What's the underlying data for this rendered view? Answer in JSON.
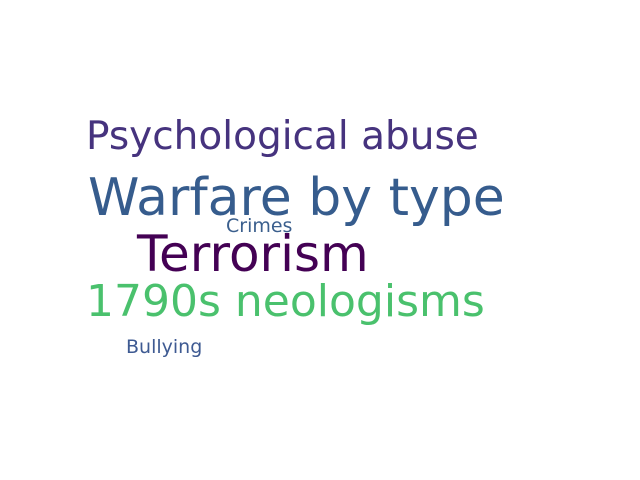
{
  "words": [
    {
      "text": "Psychological abuse",
      "color": "#46337e"
    },
    {
      "text": "Warfare by type",
      "color": "#365c8d"
    },
    {
      "text": "Crimes",
      "color": "#3b5f8d"
    },
    {
      "text": "Terrorism",
      "color": "#440154"
    },
    {
      "text": "1790s neologisms",
      "color": "#4ac16d"
    },
    {
      "text": "Bullying",
      "color": "#3e5a92"
    }
  ]
}
